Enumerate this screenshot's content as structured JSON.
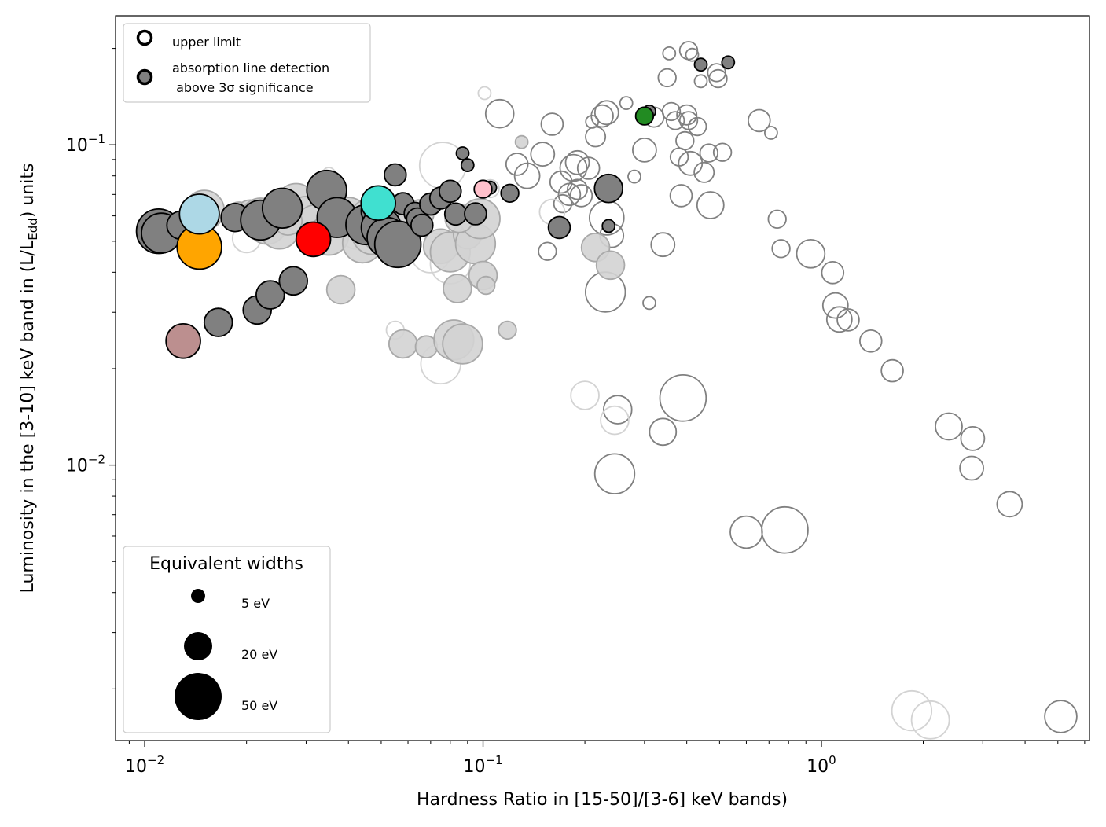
{
  "chart_data": {
    "type": "scatter",
    "xlabel": "Hardness Ratio in [15-50]/[3-6] keV bands)",
    "ylabel_parts": {
      "pre": "Luminosity in the [3-10] keV band in (L/L",
      "sub": "Edd",
      "post": ") units"
    },
    "xscale": "log",
    "yscale": "log",
    "xlim": [
      0.0082,
      6.2
    ],
    "ylim": [
      0.00138,
      0.253
    ],
    "x_ticks": [
      {
        "value": 0.01,
        "base": "10",
        "exp": "−2"
      },
      {
        "value": 0.1,
        "base": "10",
        "exp": "−1"
      },
      {
        "value": 1,
        "base": "10",
        "exp": "0"
      }
    ],
    "y_ticks": [
      {
        "value": 0.01,
        "base": "10",
        "exp": "−2"
      },
      {
        "value": 0.1,
        "base": "10",
        "exp": "−1"
      }
    ],
    "colors": {
      "upper_limit_edge": "#808080",
      "faint_edge": "#d3d3d3",
      "detection_fill": "#808080",
      "faint_fill": "#d3d3d3",
      "black": "#000000"
    },
    "marker_legend": {
      "entries": [
        {
          "label": "upper limit",
          "type": "open"
        },
        {
          "label_lines": [
            "absorption line detection",
            " above 3σ significance"
          ],
          "type": "filled"
        }
      ]
    },
    "size_legend": {
      "title": "Equivalent widths",
      "entries": [
        {
          "label": "5 eV",
          "ew": 5
        },
        {
          "label": "20 eV",
          "ew": 20
        },
        {
          "label": "50 eV",
          "ew": 50
        }
      ]
    },
    "series": [
      {
        "name": "upper limits",
        "style": "open",
        "edge": "#808080",
        "points": [
          [
            0.112,
            0.125,
            20
          ],
          [
            0.16,
            0.116,
            12
          ],
          [
            0.17,
            0.0765,
            12
          ],
          [
            0.19,
            0.088,
            14
          ],
          [
            0.205,
            0.0845,
            12
          ],
          [
            0.21,
            0.118,
            4
          ],
          [
            0.215,
            0.106,
            10
          ],
          [
            0.225,
            0.123,
            12
          ],
          [
            0.232,
            0.126,
            14
          ],
          [
            0.265,
            0.135,
            4
          ],
          [
            0.28,
            0.0796,
            4
          ],
          [
            0.3,
            0.0963,
            14
          ],
          [
            0.32,
            0.122,
            10
          ],
          [
            0.34,
            0.0488,
            14
          ],
          [
            0.35,
            0.162,
            8
          ],
          [
            0.355,
            0.193,
            4
          ],
          [
            0.36,
            0.127,
            8
          ],
          [
            0.37,
            0.119,
            8
          ],
          [
            0.38,
            0.0916,
            8
          ],
          [
            0.385,
            0.0694,
            12
          ],
          [
            0.395,
            0.103,
            8
          ],
          [
            0.4,
            0.124,
            10
          ],
          [
            0.405,
            0.119,
            8
          ],
          [
            0.405,
            0.197,
            8
          ],
          [
            0.41,
            0.0875,
            14
          ],
          [
            0.415,
            0.191,
            4
          ],
          [
            0.43,
            0.114,
            8
          ],
          [
            0.44,
            0.158,
            4
          ],
          [
            0.45,
            0.082,
            10
          ],
          [
            0.465,
            0.0943,
            8
          ],
          [
            0.47,
            0.0648,
            18
          ],
          [
            0.49,
            0.168,
            8
          ],
          [
            0.495,
            0.161,
            8
          ],
          [
            0.51,
            0.0948,
            8
          ],
          [
            0.655,
            0.119,
            12
          ],
          [
            0.71,
            0.109,
            4
          ],
          [
            0.74,
            0.0586,
            8
          ],
          [
            0.76,
            0.0474,
            8
          ],
          [
            0.93,
            0.0457,
            20
          ],
          [
            1.08,
            0.0399,
            12
          ],
          [
            1.1,
            0.0315,
            16
          ],
          [
            1.13,
            0.0285,
            16
          ],
          [
            1.2,
            0.0284,
            12
          ],
          [
            1.4,
            0.0244,
            12
          ],
          [
            1.62,
            0.0197,
            12
          ],
          [
            2.38,
            0.0132,
            18
          ],
          [
            2.8,
            0.0121,
            14
          ],
          [
            2.78,
            0.00978,
            14
          ],
          [
            3.6,
            0.00755,
            16
          ],
          [
            5.1,
            0.00164,
            26
          ],
          [
            0.31,
            0.0321,
            4
          ],
          [
            0.23,
            0.0347,
            40
          ],
          [
            0.25,
            0.0149,
            20
          ],
          [
            0.245,
            0.00939,
            40
          ],
          [
            0.34,
            0.0127,
            18
          ],
          [
            0.39,
            0.0162,
            54
          ],
          [
            0.6,
            0.00617,
            26
          ],
          [
            0.78,
            0.00627,
            54
          ],
          [
            0.155,
            0.0465,
            8
          ],
          [
            0.172,
            0.0655,
            8
          ],
          [
            0.18,
            0.07,
            12
          ],
          [
            0.195,
            0.0694,
            12
          ],
          [
            0.19,
            0.0726,
            10
          ],
          [
            0.232,
            0.0592,
            30
          ],
          [
            0.24,
            0.0521,
            14
          ],
          [
            0.126,
            0.087,
            12
          ],
          [
            0.15,
            0.0935,
            14
          ],
          [
            0.185,
            0.0847,
            18
          ],
          [
            0.135,
            0.08,
            16
          ]
        ]
      },
      {
        "name": "faint upper limits",
        "style": "open",
        "edge": "#d3d3d3",
        "points": [
          [
            0.076,
            0.0862,
            54
          ],
          [
            0.101,
            0.145,
            4
          ],
          [
            0.035,
            0.0812,
            4
          ],
          [
            0.055,
            0.0264,
            8
          ],
          [
            0.075,
            0.0207,
            40
          ],
          [
            0.2,
            0.0165,
            20
          ],
          [
            0.245,
            0.0138,
            20
          ],
          [
            1.85,
            0.00171,
            40
          ],
          [
            2.1,
            0.0016,
            36
          ],
          [
            0.16,
            0.0617,
            16
          ],
          [
            0.07,
            0.046,
            40
          ],
          [
            0.02,
            0.051,
            20
          ],
          [
            0.042,
            0.0523,
            20
          ],
          [
            0.08,
            0.0425,
            40
          ],
          [
            0.105,
            0.073,
            8
          ]
        ]
      },
      {
        "name": "faint detections",
        "style": "filled",
        "fill": "#d3d3d3",
        "edge": "#a9a9a9",
        "points": [
          [
            0.015,
            0.0625,
            40
          ],
          [
            0.019,
            0.0599,
            20
          ],
          [
            0.0205,
            0.0608,
            20
          ],
          [
            0.023,
            0.0565,
            40
          ],
          [
            0.025,
            0.0546,
            40
          ],
          [
            0.028,
            0.0656,
            40
          ],
          [
            0.03,
            0.0598,
            40
          ],
          [
            0.032,
            0.0563,
            40
          ],
          [
            0.035,
            0.0522,
            40
          ],
          [
            0.038,
            0.0353,
            20
          ],
          [
            0.04,
            0.0594,
            40
          ],
          [
            0.044,
            0.0494,
            40
          ],
          [
            0.047,
            0.0525,
            40
          ],
          [
            0.05,
            0.0535,
            40
          ],
          [
            0.053,
            0.0571,
            20
          ],
          [
            0.056,
            0.0521,
            40
          ],
          [
            0.06,
            0.0558,
            20
          ],
          [
            0.058,
            0.0239,
            20
          ],
          [
            0.068,
            0.0234,
            12
          ],
          [
            0.075,
            0.0482,
            30
          ],
          [
            0.08,
            0.0463,
            40
          ],
          [
            0.082,
            0.0246,
            40
          ],
          [
            0.087,
            0.0239,
            40
          ],
          [
            0.084,
            0.0356,
            20
          ],
          [
            0.09,
            0.0524,
            20
          ],
          [
            0.095,
            0.0491,
            40
          ],
          [
            0.098,
            0.0588,
            40
          ],
          [
            0.1,
            0.0391,
            20
          ],
          [
            0.102,
            0.0364,
            8
          ],
          [
            0.118,
            0.0264,
            8
          ],
          [
            0.13,
            0.102,
            4
          ],
          [
            0.215,
            0.0478,
            20
          ],
          [
            0.238,
            0.0421,
            20
          ],
          [
            0.065,
            0.0609,
            20
          ],
          [
            0.085,
            0.0589,
            20
          ],
          [
            0.045,
            0.0606,
            20
          ],
          [
            0.022,
            0.0591,
            40
          ],
          [
            0.0265,
            0.0578,
            20
          ]
        ]
      },
      {
        "name": "detections",
        "style": "filled",
        "fill": "#808080",
        "edge": "#000000",
        "points": [
          [
            0.011,
            0.0537,
            50
          ],
          [
            0.0112,
            0.053,
            40
          ],
          [
            0.0128,
            0.0561,
            20
          ],
          [
            0.0185,
            0.0593,
            20
          ],
          [
            0.022,
            0.0582,
            40
          ],
          [
            0.0255,
            0.0634,
            40
          ],
          [
            0.0345,
            0.0721,
            40
          ],
          [
            0.037,
            0.0593,
            40
          ],
          [
            0.045,
            0.0563,
            40
          ],
          [
            0.048,
            0.0621,
            20
          ],
          [
            0.05,
            0.0552,
            40
          ],
          [
            0.052,
            0.0514,
            40
          ],
          [
            0.056,
            0.0489,
            54
          ],
          [
            0.055,
            0.0806,
            12
          ],
          [
            0.058,
            0.0655,
            12
          ],
          [
            0.063,
            0.0611,
            12
          ],
          [
            0.064,
            0.0587,
            12
          ],
          [
            0.066,
            0.0561,
            12
          ],
          [
            0.07,
            0.0653,
            12
          ],
          [
            0.075,
            0.0682,
            12
          ],
          [
            0.08,
            0.0716,
            12
          ],
          [
            0.083,
            0.0608,
            12
          ],
          [
            0.087,
            0.0941,
            4
          ],
          [
            0.09,
            0.0864,
            4
          ],
          [
            0.095,
            0.0609,
            12
          ],
          [
            0.105,
            0.0735,
            4
          ],
          [
            0.12,
            0.0706,
            8
          ],
          [
            0.0165,
            0.0279,
            20
          ],
          [
            0.0215,
            0.0305,
            20
          ],
          [
            0.0235,
            0.034,
            20
          ],
          [
            0.0275,
            0.0376,
            20
          ],
          [
            0.168,
            0.0552,
            12
          ],
          [
            0.235,
            0.0731,
            20
          ],
          [
            0.235,
            0.0558,
            4
          ],
          [
            0.44,
            0.178,
            4
          ],
          [
            0.53,
            0.181,
            4
          ],
          [
            0.31,
            0.127,
            4
          ]
        ]
      },
      {
        "name": "highlighted sources",
        "style": "filled",
        "edge": "#000000",
        "points": [
          {
            "x": 0.0145,
            "y": 0.048,
            "ew": 50,
            "fill": "#ffa500"
          },
          {
            "x": 0.0145,
            "y": 0.0608,
            "ew": 40,
            "fill": "#add8e6"
          },
          {
            "x": 0.013,
            "y": 0.0244,
            "ew": 30,
            "fill": "#bc8f8f"
          },
          {
            "x": 0.0315,
            "y": 0.0507,
            "ew": 30,
            "fill": "#ff0000"
          },
          {
            "x": 0.049,
            "y": 0.0658,
            "ew": 30,
            "fill": "#40e0d0"
          },
          {
            "x": 0.1,
            "y": 0.0727,
            "ew": 8,
            "fill": "#ffc0cb"
          },
          {
            "x": 0.3,
            "y": 0.123,
            "ew": 8,
            "fill": "#228b22"
          }
        ]
      }
    ]
  }
}
